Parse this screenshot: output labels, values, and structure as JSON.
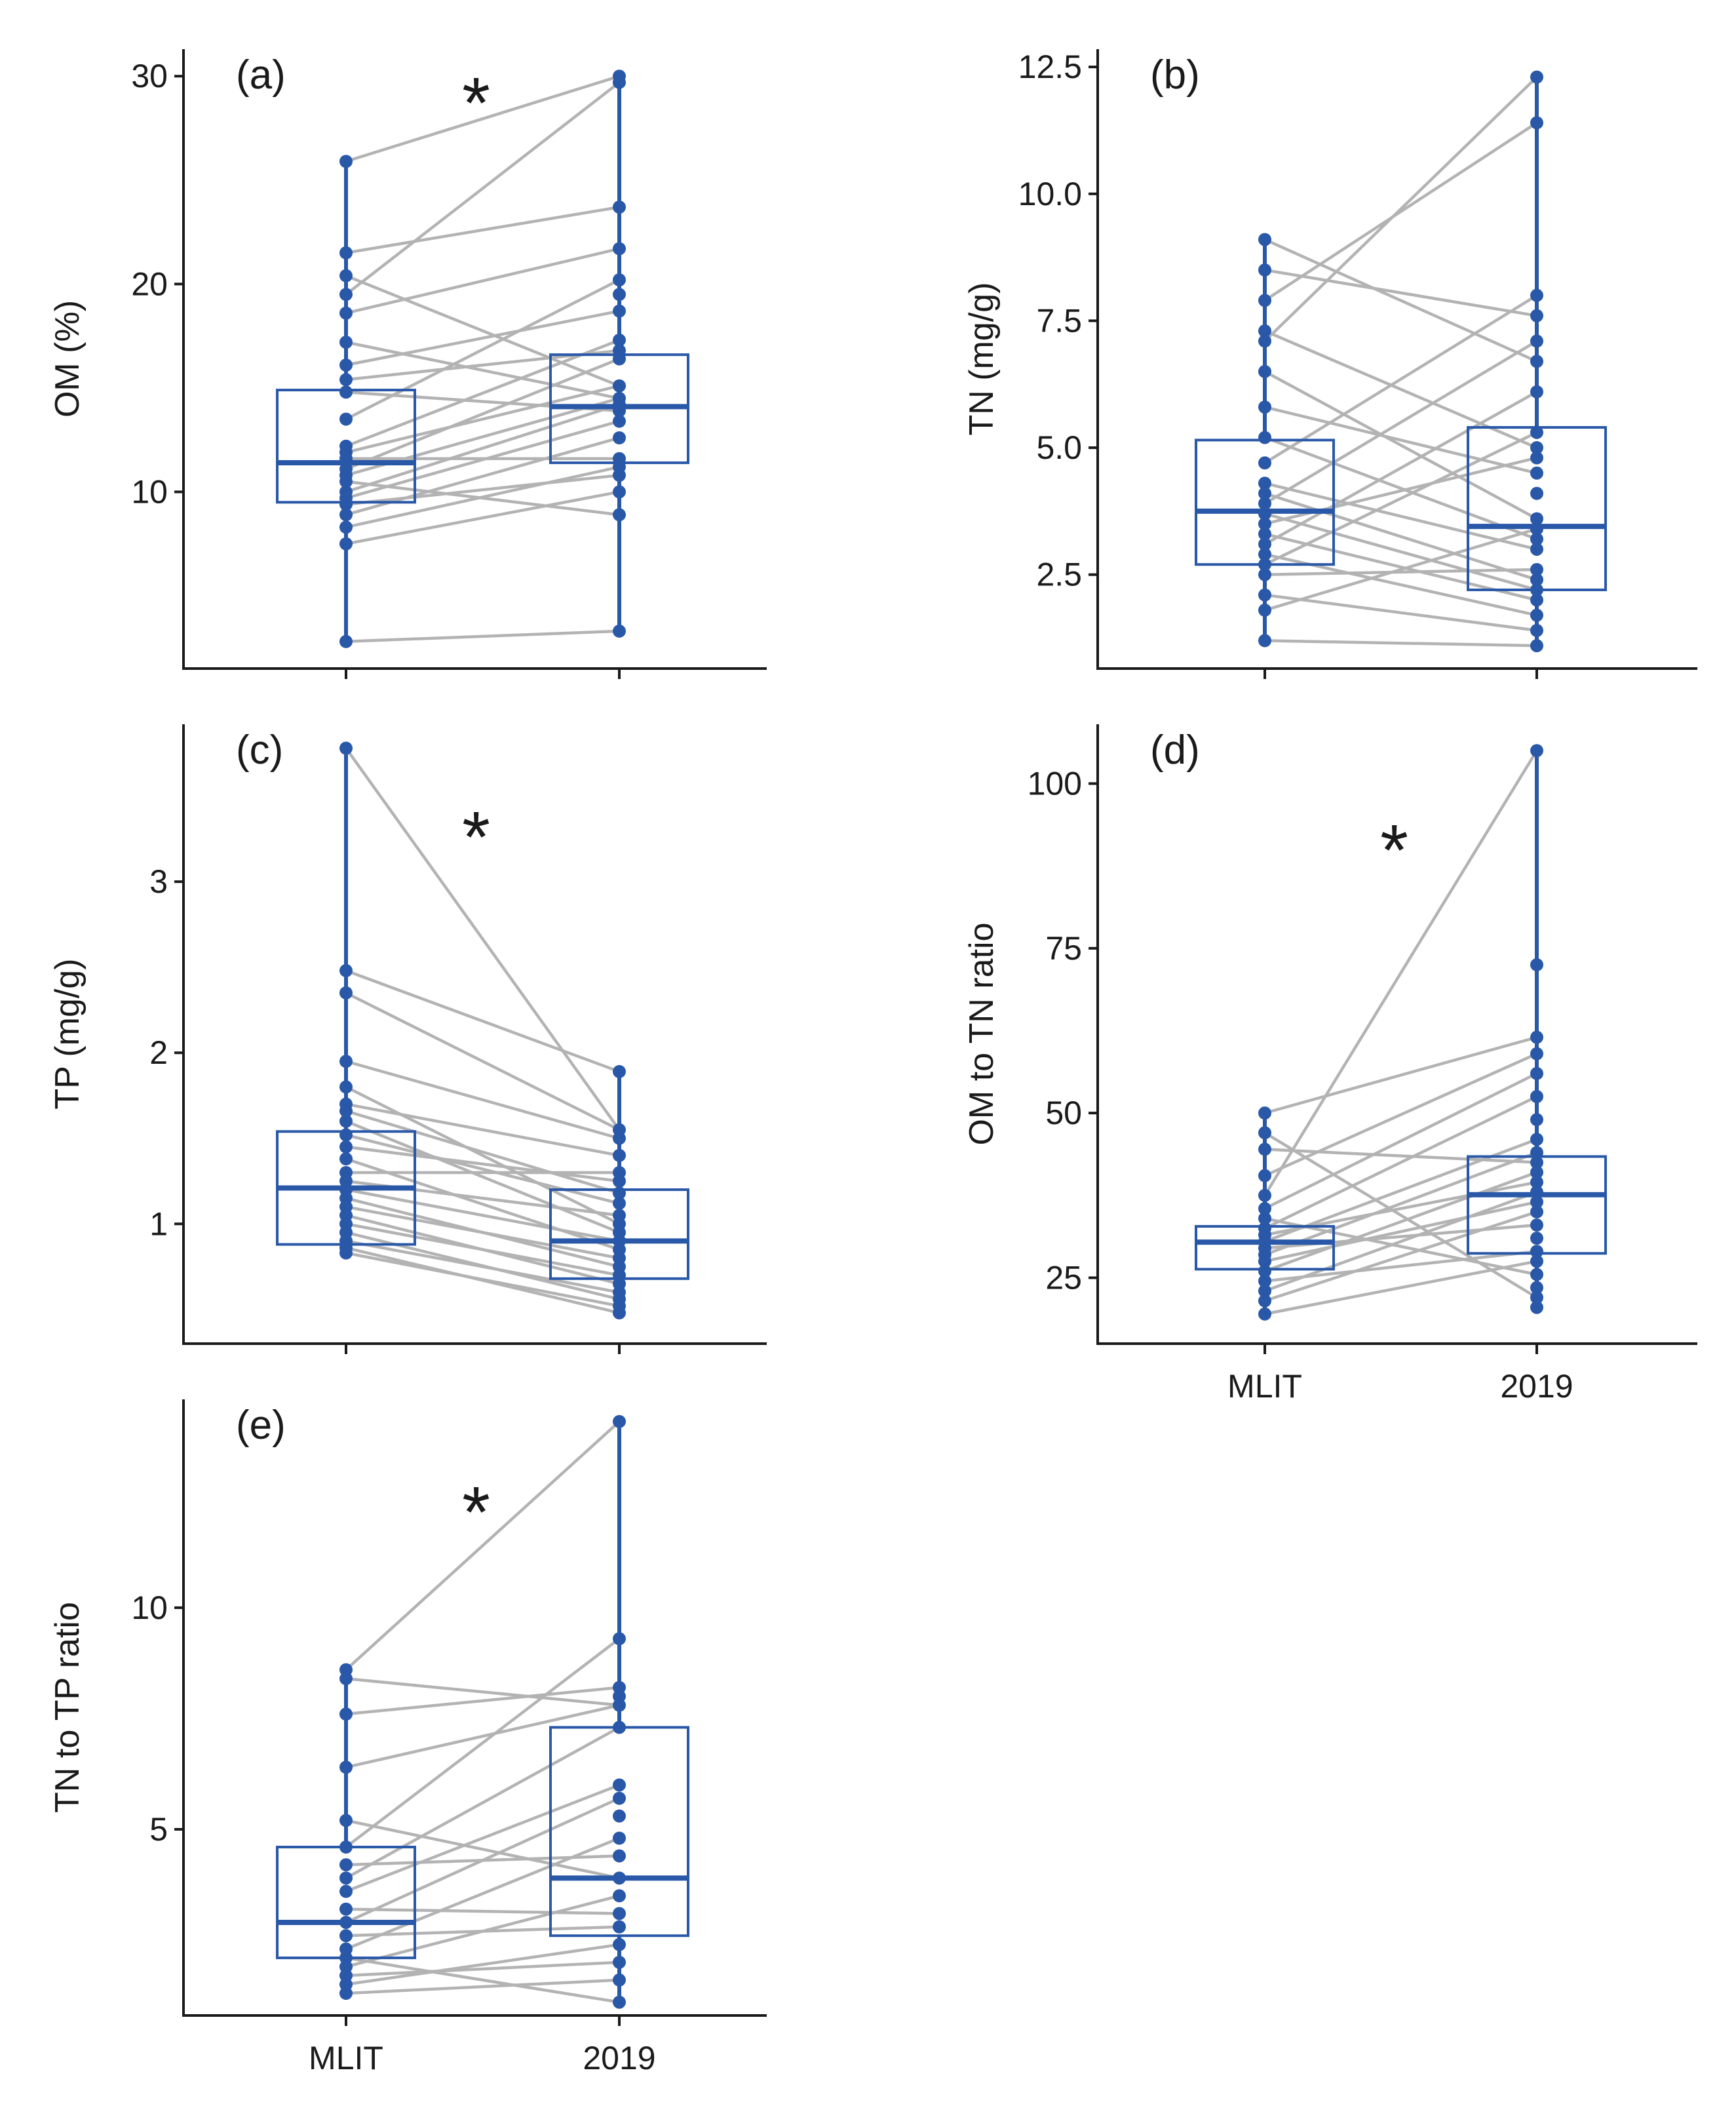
{
  "accent_color": "#2a58a8",
  "pair_line_color": "#b3b3b3",
  "chart_data": [
    {
      "type": "box",
      "panel": "(a)",
      "title": "",
      "xlabel": "",
      "ylabel": "OM (%)",
      "show_x_labels": false,
      "significant": true,
      "significance_mark": "*",
      "categories": [
        "MLIT",
        "2019"
      ],
      "ylim": [
        1.5,
        31.3
      ],
      "yticks": [
        {
          "value": 10,
          "label": "10"
        },
        {
          "value": 20,
          "label": "20"
        },
        {
          "value": 30,
          "label": "30"
        }
      ],
      "series": [
        {
          "name": "MLIT",
          "values": [
            2.8,
            7.5,
            8.3,
            8.9,
            9.4,
            9.7,
            10.0,
            10.5,
            10.8,
            11.1,
            11.6,
            11.9,
            12.2,
            13.5,
            14.8,
            15.4,
            16.1,
            17.2,
            18.6,
            19.5,
            20.4,
            21.5,
            25.9
          ],
          "box": {
            "q1": 9.5,
            "median": 11.4,
            "q3": 14.9,
            "min": 2.8,
            "max": 25.9
          }
        },
        {
          "name": "2019",
          "values": [
            3.3,
            8.9,
            10.0,
            10.8,
            11.2,
            11.6,
            12.6,
            13.4,
            13.9,
            14.2,
            14.5,
            15.1,
            16.4,
            16.8,
            17.3,
            18.7,
            19.5,
            20.2,
            21.7,
            23.7,
            29.7,
            30.0
          ],
          "box": {
            "q1": 11.4,
            "median": 14.1,
            "q3": 16.6,
            "min": 3.3,
            "max": 30.0
          }
        }
      ],
      "pairs": [
        [
          2.8,
          3.3
        ],
        [
          7.5,
          10.0
        ],
        [
          8.3,
          11.2
        ],
        [
          8.9,
          12.6
        ],
        [
          9.4,
          10.8
        ],
        [
          9.7,
          13.4
        ],
        [
          10.0,
          14.2
        ],
        [
          10.5,
          8.9
        ],
        [
          10.8,
          14.5
        ],
        [
          11.1,
          16.4
        ],
        [
          11.6,
          11.6
        ],
        [
          11.9,
          15.1
        ],
        [
          12.2,
          17.3
        ],
        [
          13.5,
          20.2
        ],
        [
          14.8,
          13.9
        ],
        [
          15.4,
          16.8
        ],
        [
          16.1,
          18.7
        ],
        [
          17.2,
          14.5
        ],
        [
          18.6,
          21.7
        ],
        [
          19.5,
          29.7
        ],
        [
          20.4,
          15.1
        ],
        [
          21.5,
          23.7
        ],
        [
          25.9,
          30.0
        ]
      ]
    },
    {
      "type": "box",
      "panel": "(b)",
      "title": "",
      "xlabel": "",
      "ylabel": "TN (mg/g)",
      "show_x_labels": false,
      "significant": false,
      "significance_mark": "",
      "categories": [
        "MLIT",
        "2019"
      ],
      "ylim": [
        0.65,
        12.85
      ],
      "yticks": [
        {
          "value": 2.5,
          "label": "2.5"
        },
        {
          "value": 5.0,
          "label": "5.0"
        },
        {
          "value": 7.5,
          "label": "7.5"
        },
        {
          "value": 10.0,
          "label": "10.0"
        },
        {
          "value": 12.5,
          "label": "12.5"
        }
      ],
      "series": [
        {
          "name": "MLIT",
          "values": [
            1.2,
            1.8,
            2.1,
            2.5,
            2.7,
            2.9,
            3.1,
            3.3,
            3.5,
            3.7,
            3.9,
            4.1,
            4.3,
            4.7,
            5.2,
            5.8,
            6.5,
            7.1,
            7.3,
            7.9,
            8.5,
            9.1
          ],
          "box": {
            "q1": 2.7,
            "median": 3.75,
            "q3": 5.15,
            "min": 1.2,
            "max": 9.1
          }
        },
        {
          "name": "2019",
          "values": [
            1.1,
            1.4,
            1.7,
            2.0,
            2.2,
            2.4,
            2.6,
            3.0,
            3.2,
            3.4,
            3.6,
            4.1,
            4.5,
            4.8,
            5.0,
            5.3,
            6.1,
            6.7,
            7.1,
            7.6,
            8.0,
            11.4,
            12.3
          ],
          "box": {
            "q1": 2.2,
            "median": 3.45,
            "q3": 5.4,
            "min": 1.1,
            "max": 12.3
          }
        }
      ],
      "pairs": [
        [
          1.2,
          1.1
        ],
        [
          1.8,
          3.4
        ],
        [
          2.1,
          1.4
        ],
        [
          2.5,
          2.6
        ],
        [
          2.7,
          5.3
        ],
        [
          2.9,
          1.7
        ],
        [
          3.1,
          6.1
        ],
        [
          3.3,
          2.0
        ],
        [
          3.5,
          4.8
        ],
        [
          3.7,
          2.2
        ],
        [
          3.9,
          7.1
        ],
        [
          4.1,
          2.4
        ],
        [
          4.3,
          3.0
        ],
        [
          4.7,
          8.0
        ],
        [
          5.2,
          3.2
        ],
        [
          5.8,
          4.5
        ],
        [
          6.5,
          3.6
        ],
        [
          7.1,
          12.3
        ],
        [
          7.3,
          5.0
        ],
        [
          7.9,
          11.4
        ],
        [
          8.5,
          7.6
        ],
        [
          9.1,
          6.7
        ]
      ]
    },
    {
      "type": "box",
      "panel": "(c)",
      "title": "",
      "xlabel": "",
      "ylabel": "TP (mg/g)",
      "show_x_labels": false,
      "significant": true,
      "significance_mark": "*",
      "categories": [
        "MLIT",
        "2019"
      ],
      "ylim": [
        0.3,
        3.92
      ],
      "yticks": [
        {
          "value": 1,
          "label": "1"
        },
        {
          "value": 2,
          "label": "2"
        },
        {
          "value": 3,
          "label": "3"
        }
      ],
      "series": [
        {
          "name": "MLIT",
          "values": [
            0.83,
            0.86,
            0.9,
            0.95,
            1.0,
            1.05,
            1.1,
            1.15,
            1.2,
            1.25,
            1.3,
            1.38,
            1.45,
            1.52,
            1.6,
            1.66,
            1.7,
            1.8,
            1.95,
            2.35,
            2.48,
            3.78
          ],
          "box": {
            "q1": 0.88,
            "median": 1.21,
            "q3": 1.54,
            "min": 0.83,
            "max": 3.78
          }
        },
        {
          "name": "2019",
          "values": [
            0.48,
            0.52,
            0.56,
            0.6,
            0.65,
            0.7,
            0.75,
            0.8,
            0.85,
            0.9,
            0.95,
            1.0,
            1.05,
            1.12,
            1.18,
            1.25,
            1.3,
            1.4,
            1.5,
            1.55,
            1.89
          ],
          "box": {
            "q1": 0.68,
            "median": 0.9,
            "q3": 1.2,
            "min": 0.48,
            "max": 1.89
          }
        }
      ],
      "pairs": [
        [
          0.83,
          0.52
        ],
        [
          0.86,
          0.48
        ],
        [
          0.9,
          0.6
        ],
        [
          0.95,
          0.56
        ],
        [
          1.0,
          0.7
        ],
        [
          1.05,
          0.65
        ],
        [
          1.1,
          0.8
        ],
        [
          1.15,
          0.75
        ],
        [
          1.2,
          0.9
        ],
        [
          1.25,
          1.05
        ],
        [
          1.3,
          1.3
        ],
        [
          1.38,
          0.85
        ],
        [
          1.45,
          1.25
        ],
        [
          1.52,
          1.12
        ],
        [
          1.6,
          0.95
        ],
        [
          1.66,
          1.18
        ],
        [
          1.7,
          1.4
        ],
        [
          1.8,
          1.0
        ],
        [
          1.95,
          1.5
        ],
        [
          2.35,
          1.55
        ],
        [
          2.48,
          1.89
        ],
        [
          3.78,
          1.55
        ]
      ]
    },
    {
      "type": "box",
      "panel": "(d)",
      "title": "",
      "xlabel": "",
      "ylabel": "OM to TN ratio",
      "show_x_labels": true,
      "significant": true,
      "significance_mark": "*",
      "categories": [
        "MLIT",
        "2019"
      ],
      "ylim": [
        15.0,
        109.0
      ],
      "yticks": [
        {
          "value": 25,
          "label": "25"
        },
        {
          "value": 50,
          "label": "50"
        },
        {
          "value": 75,
          "label": "75"
        },
        {
          "value": 100,
          "label": "100"
        }
      ],
      "series": [
        {
          "name": "MLIT",
          "values": [
            19.5,
            21.5,
            23.0,
            24.5,
            26.0,
            27.5,
            28.5,
            29.5,
            30.5,
            31.5,
            32.5,
            34.0,
            35.5,
            37.5,
            40.5,
            44.5,
            47.0,
            50.0
          ],
          "box": {
            "q1": 26.3,
            "median": 30.4,
            "q3": 32.8,
            "min": 19.5,
            "max": 50.0
          }
        },
        {
          "name": "2019",
          "values": [
            20.5,
            22.0,
            23.5,
            25.5,
            27.5,
            29.0,
            31.0,
            33.0,
            35.0,
            36.5,
            38.0,
            39.5,
            41.0,
            42.5,
            44.0,
            46.0,
            49.0,
            52.5,
            56.0,
            59.0,
            61.5,
            72.5,
            105.0
          ],
          "box": {
            "q1": 28.7,
            "median": 37.6,
            "q3": 43.4,
            "min": 20.5,
            "max": 105.0
          }
        }
      ],
      "pairs": [
        [
          19.5,
          27.5
        ],
        [
          21.5,
          35.0
        ],
        [
          23.0,
          38.0
        ],
        [
          24.5,
          29.0
        ],
        [
          26.0,
          41.0
        ],
        [
          27.5,
          36.5
        ],
        [
          28.5,
          44.0
        ],
        [
          29.5,
          33.0
        ],
        [
          30.5,
          46.0
        ],
        [
          31.5,
          39.5
        ],
        [
          32.5,
          52.5
        ],
        [
          34.0,
          25.5
        ],
        [
          35.5,
          56.0
        ],
        [
          37.5,
          105.0
        ],
        [
          40.5,
          59.0
        ],
        [
          44.5,
          42.5
        ],
        [
          47.0,
          22.0
        ],
        [
          50.0,
          61.5
        ]
      ]
    },
    {
      "type": "box",
      "panel": "(e)",
      "title": "",
      "xlabel": "",
      "ylabel": "TN to TP ratio",
      "show_x_labels": true,
      "significant": true,
      "significance_mark": "*",
      "categories": [
        "MLIT",
        "2019"
      ],
      "ylim": [
        0.8,
        14.7
      ],
      "yticks": [
        {
          "value": 5,
          "label": "5"
        },
        {
          "value": 10,
          "label": "10"
        }
      ],
      "series": [
        {
          "name": "MLIT",
          "values": [
            1.3,
            1.5,
            1.7,
            1.9,
            2.1,
            2.3,
            2.6,
            2.9,
            3.2,
            3.6,
            3.9,
            4.2,
            4.6,
            5.2,
            6.4,
            7.6,
            8.4,
            8.6
          ],
          "box": {
            "q1": 2.1,
            "median": 2.9,
            "q3": 4.6,
            "min": 1.3,
            "max": 8.6
          }
        },
        {
          "name": "2019",
          "values": [
            1.1,
            1.6,
            2.0,
            2.4,
            2.8,
            3.1,
            3.5,
            3.9,
            4.4,
            4.8,
            5.3,
            5.7,
            6.0,
            7.3,
            7.8,
            8.0,
            8.2,
            9.3,
            14.2
          ],
          "box": {
            "q1": 2.6,
            "median": 3.9,
            "q3": 7.3,
            "min": 1.1,
            "max": 14.2
          }
        }
      ],
      "pairs": [
        [
          1.3,
          1.6
        ],
        [
          1.5,
          2.4
        ],
        [
          1.7,
          2.0
        ],
        [
          1.9,
          3.5
        ],
        [
          2.1,
          1.1
        ],
        [
          2.3,
          4.8
        ],
        [
          2.6,
          2.8
        ],
        [
          2.9,
          5.7
        ],
        [
          3.2,
          3.1
        ],
        [
          3.6,
          6.0
        ],
        [
          3.9,
          7.3
        ],
        [
          4.2,
          4.4
        ],
        [
          4.6,
          9.3
        ],
        [
          5.2,
          3.9
        ],
        [
          6.4,
          7.8
        ],
        [
          7.6,
          8.2
        ],
        [
          8.4,
          7.8
        ],
        [
          8.6,
          14.2
        ]
      ]
    }
  ]
}
